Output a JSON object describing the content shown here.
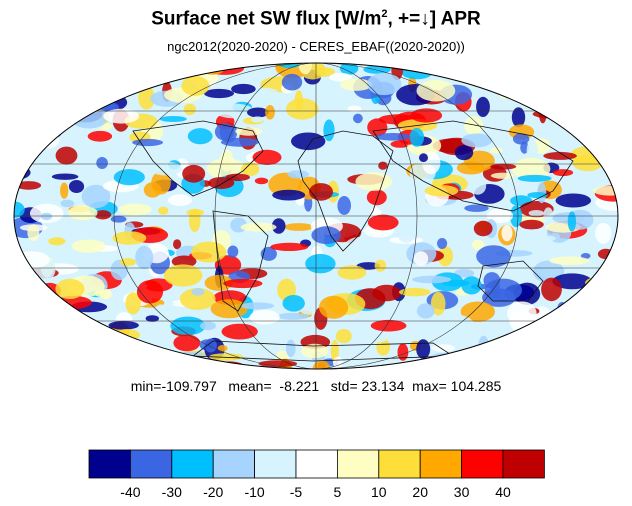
{
  "header": {
    "title_main": "Surface net SW flux [W/m",
    "title_sup": "2",
    "title_tail": ", +=↓]  APR",
    "subtitle": "ngc2012(2020-2020) - CERES_EBAF((2020-2020))"
  },
  "stats": {
    "min_label": "min=",
    "min": "-109.797",
    "mean_label": "mean=",
    "mean": "-8.221",
    "std_label": "std=",
    "std": "23.134",
    "max_label": "max=",
    "max": "104.285"
  },
  "map": {
    "projection": "mollweide",
    "grid_lines": true
  },
  "colorbar": {
    "colors": [
      "#00008f",
      "#3b66e3",
      "#00bfff",
      "#a6d4fe",
      "#d6f3fe",
      "#ffffff",
      "#fefec3",
      "#fedf3a",
      "#fea800",
      "#fe0000",
      "#c00000"
    ],
    "tick_labels": [
      "-40",
      "-30",
      "-20",
      "-10",
      "-5",
      "5",
      "10",
      "20",
      "30",
      "40"
    ]
  }
}
